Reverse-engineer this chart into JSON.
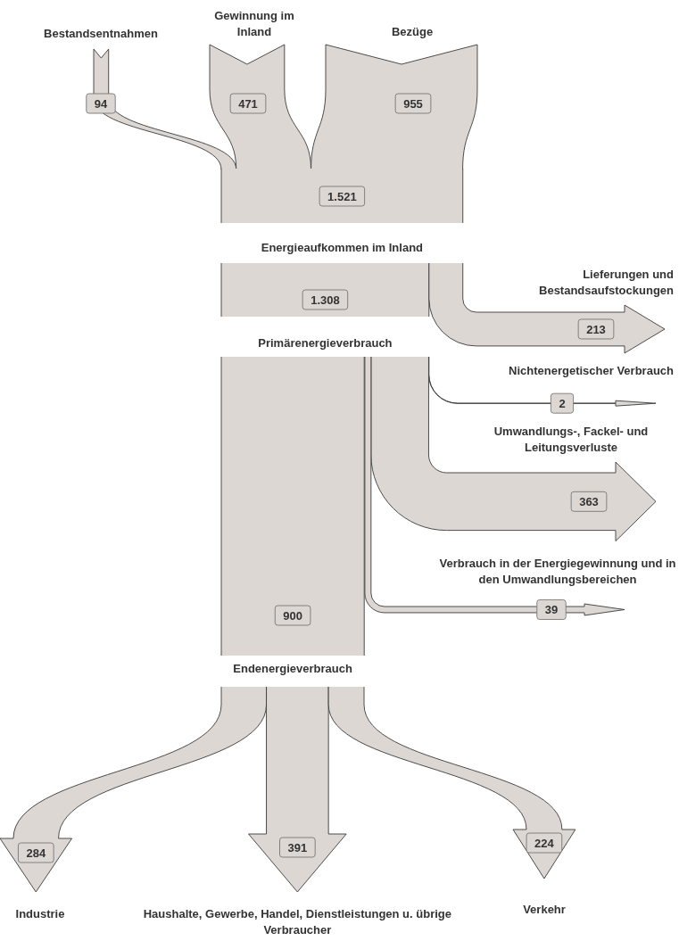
{
  "chart_data": {
    "type": "other",
    "color": "#dcd7d3",
    "categories": [
      "Bestandsentnahmen",
      "Gewinnung im Inland",
      "Bezüge",
      "Energieaufkommen im Inland",
      "Primärenergieverbrauch",
      "Lieferungen und Bestandsaufstockungen",
      "Nichtenergetischer Verbrauch",
      "Umwandlungs-, Fackel- und Leitungsverluste",
      "Verbrauch in der Energiegewinnung und in den Umwandlungsbereichen",
      "Endenergieverbrauch",
      "Industrie",
      "Haushalte, Gewerbe, Handel, Dienstleistungen u. übrige Verbraucher",
      "Verkehr"
    ],
    "values": [
      94,
      471,
      955,
      1521,
      1308,
      213,
      2,
      363,
      39,
      900,
      284,
      391,
      224
    ],
    "value_labels": [
      "94",
      "471",
      "955",
      "1.521",
      "1.308",
      "213",
      "2",
      "363",
      "39",
      "900",
      "284",
      "391",
      "224"
    ]
  }
}
